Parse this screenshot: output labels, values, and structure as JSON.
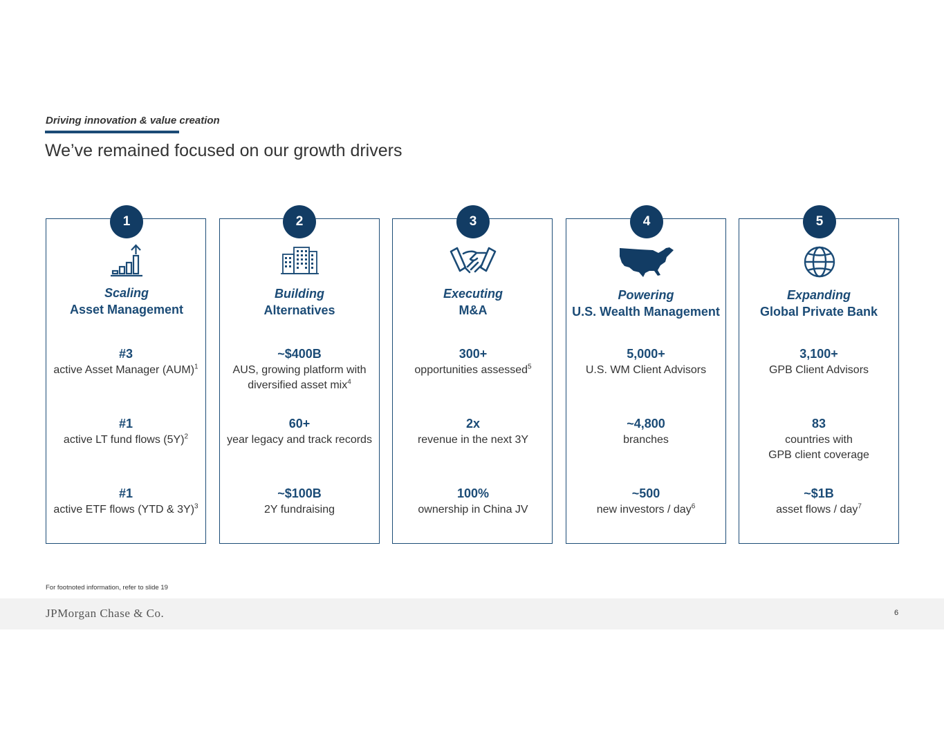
{
  "header": {
    "kicker": "Driving innovation & value creation",
    "title": "We’ve remained focused on our growth drivers"
  },
  "colors": {
    "accent": "#1b4b76",
    "badge": "#123c64",
    "footer_bg": "#f2f2f2"
  },
  "drivers": [
    {
      "number": "1",
      "icon": "bar-chart-growth-icon",
      "title_line1": "Scaling",
      "title_line2": "Asset Management",
      "stats": [
        {
          "value": "#3",
          "desc": "active Asset Manager (AUM)",
          "sup": "1"
        },
        {
          "value": "#1",
          "desc": "active LT fund flows (5Y)",
          "sup": "2"
        },
        {
          "value": "#1",
          "desc": "active ETF flows (YTD & 3Y)",
          "sup": "3"
        }
      ]
    },
    {
      "number": "2",
      "icon": "office-buildings-icon",
      "title_line1": "Building",
      "title_line2": "Alternatives",
      "stats": [
        {
          "value": "~$400B",
          "desc": "AUS, growing platform with",
          "desc2": "diversified asset mix",
          "sup": "4"
        },
        {
          "value": "60+",
          "desc": "year legacy and track records"
        },
        {
          "value": "~$100B",
          "desc": "2Y fundraising"
        }
      ]
    },
    {
      "number": "3",
      "icon": "handshake-icon",
      "title_line1": "Executing",
      "title_line2": "M&A",
      "stats": [
        {
          "value": "300+",
          "desc": "opportunities assessed",
          "sup": "5"
        },
        {
          "value": "2x",
          "desc": "revenue in the next 3Y"
        },
        {
          "value": "100%",
          "desc": "ownership in China JV"
        }
      ]
    },
    {
      "number": "4",
      "icon": "usa-map-icon",
      "title_line1": "Powering",
      "title_line2": "U.S. Wealth Management",
      "stats": [
        {
          "value": "5,000+",
          "desc": "U.S. WM Client Advisors"
        },
        {
          "value": "~4,800",
          "desc": "branches"
        },
        {
          "value": "~500",
          "desc": "new investors / day",
          "sup": "6"
        }
      ]
    },
    {
      "number": "5",
      "icon": "globe-icon",
      "title_line1": "Expanding",
      "title_line2": "Global Private Bank",
      "stats": [
        {
          "value": "3,100+",
          "desc": "GPB Client Advisors"
        },
        {
          "value": "83",
          "desc": "countries with",
          "desc2": "GPB client coverage"
        },
        {
          "value": "~$1B",
          "desc": "asset flows / day",
          "sup": "7"
        }
      ]
    }
  ],
  "footnote": "For footnoted information, refer to slide 19",
  "footer": {
    "logo_text": "JPMorgan Chase & Co.",
    "page_number": "6"
  }
}
